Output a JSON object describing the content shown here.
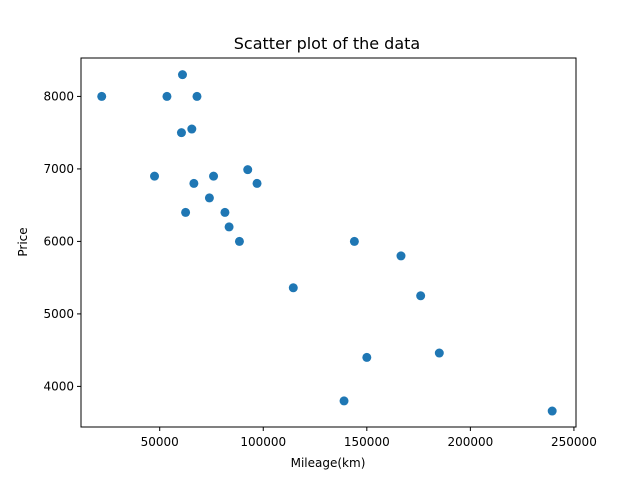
{
  "chart_data": {
    "type": "scatter",
    "title": "Scatter plot of the data",
    "xlabel": "Mileage(km)",
    "ylabel": "Price",
    "xlim": [
      12000,
      251000
    ],
    "ylim": [
      3440,
      8530
    ],
    "xticks": [
      50000,
      100000,
      150000,
      200000,
      250000
    ],
    "yticks": [
      4000,
      5000,
      6000,
      7000,
      8000
    ],
    "grid": false,
    "legend": "none",
    "marker_color": "#1f77b4",
    "points": [
      {
        "x": 22000,
        "y": 8000
      },
      {
        "x": 53500,
        "y": 8000
      },
      {
        "x": 61000,
        "y": 8300
      },
      {
        "x": 68000,
        "y": 8000
      },
      {
        "x": 60500,
        "y": 7500
      },
      {
        "x": 65500,
        "y": 7550
      },
      {
        "x": 47500,
        "y": 6900
      },
      {
        "x": 66500,
        "y": 6800
      },
      {
        "x": 76000,
        "y": 6900
      },
      {
        "x": 92500,
        "y": 6990
      },
      {
        "x": 97000,
        "y": 6800
      },
      {
        "x": 74000,
        "y": 6600
      },
      {
        "x": 62500,
        "y": 6400
      },
      {
        "x": 81500,
        "y": 6400
      },
      {
        "x": 83500,
        "y": 6200
      },
      {
        "x": 88500,
        "y": 6000
      },
      {
        "x": 144000,
        "y": 6000
      },
      {
        "x": 166500,
        "y": 5800
      },
      {
        "x": 114500,
        "y": 5360
      },
      {
        "x": 176000,
        "y": 5250
      },
      {
        "x": 150000,
        "y": 4400
      },
      {
        "x": 185000,
        "y": 4460
      },
      {
        "x": 139000,
        "y": 3800
      },
      {
        "x": 239500,
        "y": 3660
      }
    ]
  }
}
